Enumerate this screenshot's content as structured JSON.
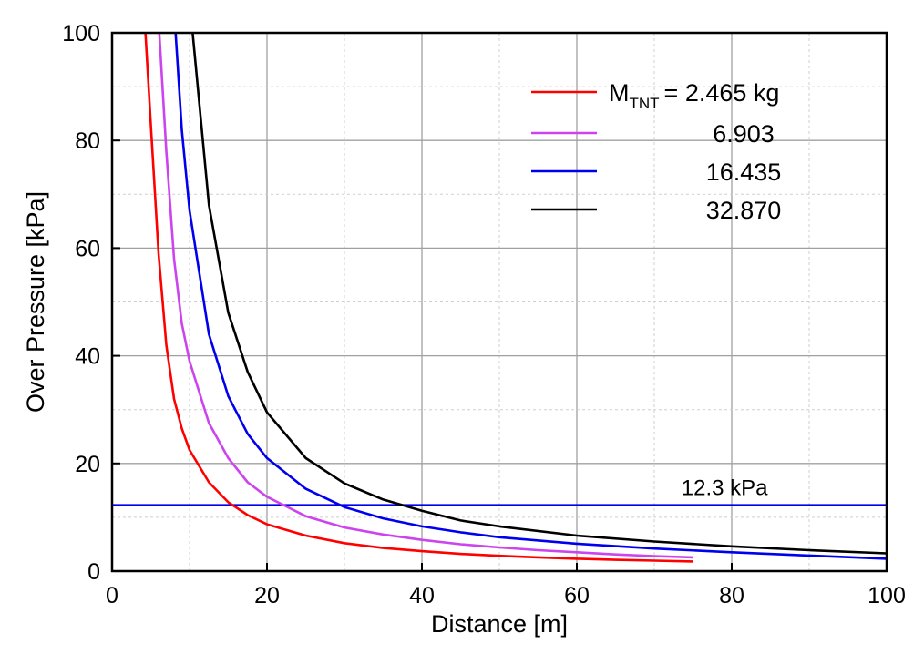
{
  "chart_data": {
    "type": "line",
    "xlabel": "Distance [m]",
    "ylabel": "Over Pressure [kPa]",
    "xlim": [
      0,
      100
    ],
    "ylim": [
      0,
      100
    ],
    "xticks": [
      0,
      20,
      40,
      60,
      80,
      100
    ],
    "yticks": [
      0,
      20,
      40,
      60,
      80,
      100
    ],
    "grid": true,
    "legend_position": "top-right",
    "legend_title_prefix": "M",
    "legend_title_subscript": "TNT",
    "series": [
      {
        "name": "= 2.465 kg",
        "color": "#ff0000",
        "x": [
          4.3,
          5,
          6,
          7,
          8,
          9,
          10,
          12.5,
          15,
          17.5,
          20,
          25,
          30,
          35,
          40,
          45,
          50,
          55,
          60,
          65,
          70,
          75
        ],
        "y": [
          100,
          83,
          59,
          42,
          32,
          26.5,
          22.5,
          16.5,
          12.8,
          10.4,
          8.7,
          6.6,
          5.2,
          4.3,
          3.7,
          3.2,
          2.85,
          2.55,
          2.3,
          2.1,
          1.95,
          1.8
        ]
      },
      {
        "name": "6.903",
        "color": "#cc44ee",
        "x": [
          6.1,
          7,
          8,
          9,
          10,
          12.5,
          15,
          17.5,
          20,
          25,
          30,
          35,
          40,
          45,
          50,
          55,
          60,
          65,
          70,
          75
        ],
        "y": [
          100,
          78,
          58,
          46,
          39,
          27.5,
          21,
          16.5,
          13.8,
          10.2,
          8.1,
          6.8,
          5.8,
          5,
          4.4,
          3.9,
          3.5,
          3.1,
          2.8,
          2.55
        ]
      },
      {
        "name": "16.435",
        "color": "#0000ee",
        "x": [
          8.2,
          9,
          10,
          12.5,
          15,
          17.5,
          20,
          25,
          30,
          35,
          40,
          45,
          50,
          60,
          70,
          80,
          90,
          100
        ],
        "y": [
          100,
          82,
          67,
          44,
          32.5,
          25.5,
          21,
          15.3,
          11.9,
          9.8,
          8.3,
          7.2,
          6.3,
          5.1,
          4.2,
          3.5,
          2.9,
          2.3
        ]
      },
      {
        "name": "32.870",
        "color": "#000000",
        "x": [
          10.4,
          12.5,
          15,
          17.5,
          20,
          25,
          30,
          35,
          40,
          45,
          50,
          60,
          70,
          80,
          90,
          100
        ],
        "y": [
          100,
          68,
          48,
          37,
          29.5,
          21,
          16.3,
          13.3,
          11.2,
          9.4,
          8.3,
          6.6,
          5.5,
          4.6,
          3.9,
          3.3
        ]
      }
    ],
    "reference_line": {
      "y": 12.3,
      "color": "#0000ee",
      "label": "12.3 kPa"
    }
  }
}
